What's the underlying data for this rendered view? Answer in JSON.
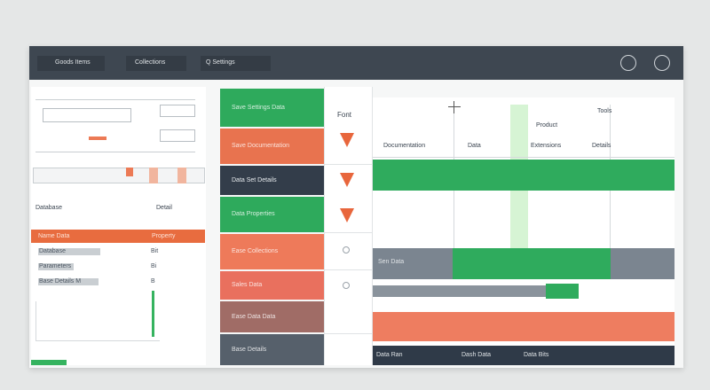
{
  "toolbar": {
    "tabs": [
      "Goods Items",
      "Collections",
      "Q Settings"
    ]
  },
  "left_panel": {
    "section_title": "Database",
    "section_action": "Detail",
    "header_left": "Name Data",
    "header_right": "Property",
    "rows": [
      [
        "Database",
        "Bit"
      ],
      [
        "Parameters",
        "Bi"
      ],
      [
        "Base Details M",
        "B"
      ]
    ]
  },
  "cards": [
    "Save Settings Data",
    "Save Documentation",
    "Data Set Details",
    "Data Properties",
    "Ease Collections",
    "Sales Data",
    "Ease Data Data",
    "Base Details"
  ],
  "arrow_header": "Font",
  "grid": {
    "top_labels": [
      "Product",
      "Tools"
    ],
    "headers": [
      "Documentation",
      "Data",
      "Extensions",
      "Details"
    ],
    "row_label": "Sen Data",
    "bottom_labels": [
      "Data Ran",
      "Dash Data",
      "Data Bits"
    ]
  }
}
